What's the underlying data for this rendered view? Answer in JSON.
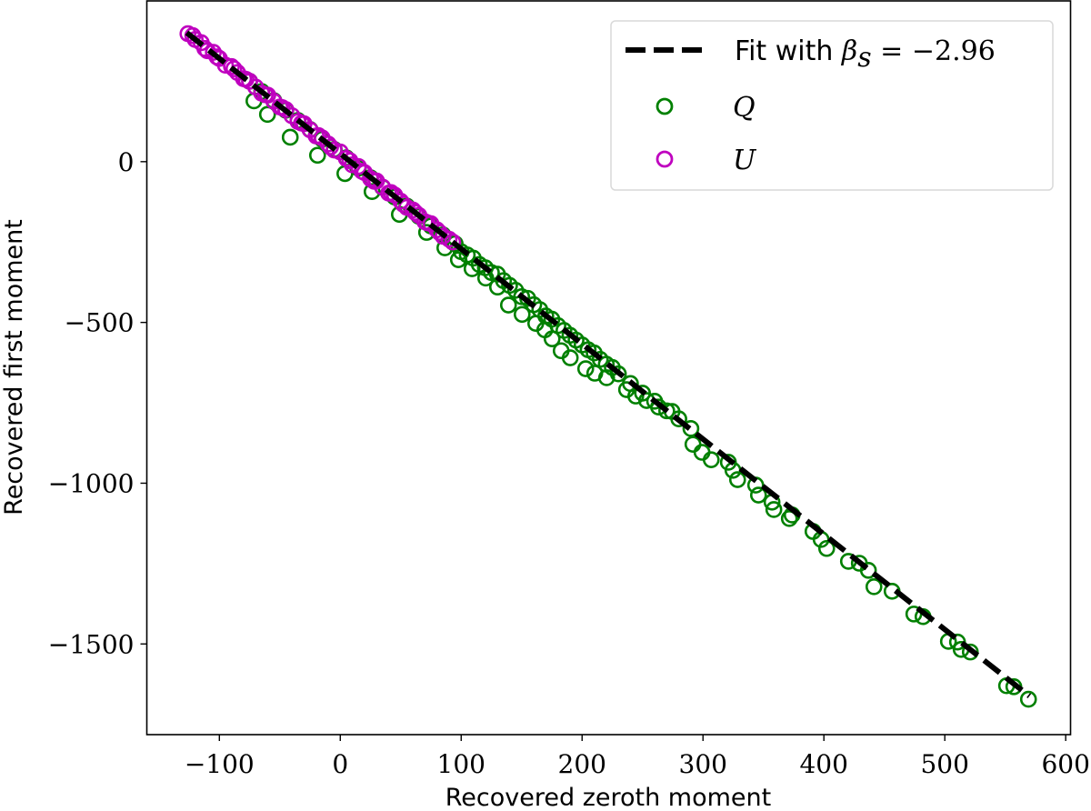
{
  "chart_data": {
    "type": "scatter",
    "xlabel": "Recovered zeroth moment",
    "ylabel": "Recovered first moment",
    "xlim": [
      -160,
      604
    ],
    "ylim": [
      -1782,
      500
    ],
    "xticks": [
      -100,
      0,
      100,
      200,
      300,
      400,
      500,
      600
    ],
    "xtick_labels": [
      "−100",
      "0",
      "100",
      "200",
      "300",
      "400",
      "500",
      "600"
    ],
    "yticks": [
      0,
      -500,
      -1000,
      -1500
    ],
    "ytick_labels": [
      "0",
      "−500",
      "−1000",
      "−1500"
    ],
    "grid": false,
    "legend_position": "top-right",
    "fit": {
      "label_prefix": "Fit with ",
      "label_symbol": "β",
      "label_subscript": "s",
      "label_value": " = −2.96",
      "slope": -2.96,
      "intercept": 25,
      "x_range": [
        -127,
        570
      ],
      "color": "#000000",
      "style": "dashed"
    },
    "series": [
      {
        "name": "Q",
        "color": "#008000",
        "marker": "open-circle",
        "points": [
          [
            -75,
            250
          ],
          [
            -71.4,
            189
          ],
          [
            -65,
            218
          ],
          [
            -60.2,
            147
          ],
          [
            -55,
            190
          ],
          [
            -45,
            160
          ],
          [
            -41.4,
            76
          ],
          [
            -35,
            128
          ],
          [
            -25,
            100
          ],
          [
            -18.8,
            20
          ],
          [
            -15,
            70
          ],
          [
            -5,
            38
          ],
          [
            3.8,
            -37
          ],
          [
            5,
            12
          ],
          [
            15,
            -20
          ],
          [
            25,
            -50
          ],
          [
            26.3,
            -93
          ],
          [
            35,
            -80
          ],
          [
            45,
            -110
          ],
          [
            48.9,
            -164
          ],
          [
            55,
            -138
          ],
          [
            65,
            -170
          ],
          [
            71.4,
            -220
          ],
          [
            75,
            -200
          ],
          [
            85,
            -228
          ],
          [
            86.5,
            -268
          ],
          [
            95,
            -255
          ],
          [
            97.7,
            -305
          ],
          [
            100,
            -280
          ],
          [
            105,
            -290
          ],
          [
            109,
            -333
          ],
          [
            110,
            -300
          ],
          [
            115,
            -320
          ],
          [
            120,
            -330
          ],
          [
            120.3,
            -362
          ],
          [
            125,
            -345
          ],
          [
            130,
            -350
          ],
          [
            130.1,
            -390
          ],
          [
            135,
            -370
          ],
          [
            139.1,
            -446
          ],
          [
            140,
            -385
          ],
          [
            145,
            -400
          ],
          [
            150,
            -420
          ],
          [
            150.4,
            -475
          ],
          [
            155,
            -425
          ],
          [
            160,
            -445
          ],
          [
            161.7,
            -503
          ],
          [
            165,
            -460
          ],
          [
            169.2,
            -523
          ],
          [
            170,
            -480
          ],
          [
            175,
            -490
          ],
          [
            175.2,
            -551
          ],
          [
            180,
            -510
          ],
          [
            182.7,
            -588
          ],
          [
            185,
            -525
          ],
          [
            190,
            -540
          ],
          [
            190.2,
            -610
          ],
          [
            195,
            -555
          ],
          [
            200,
            -570
          ],
          [
            203,
            -644
          ],
          [
            205,
            -585
          ],
          [
            210,
            -595
          ],
          [
            210.5,
            -658
          ],
          [
            215,
            -615
          ],
          [
            220,
            -630
          ],
          [
            220.3,
            -672
          ],
          [
            225,
            -640
          ],
          [
            230,
            -660
          ],
          [
            236.8,
            -709
          ],
          [
            240,
            -690
          ],
          [
            244.4,
            -729
          ],
          [
            250,
            -720
          ],
          [
            253.4,
            -743
          ],
          [
            260,
            -745
          ],
          [
            263.2,
            -763
          ],
          [
            270,
            -775
          ],
          [
            274.4,
            -777
          ],
          [
            280,
            -800
          ],
          [
            290,
            -830
          ],
          [
            291.7,
            -879
          ],
          [
            299.2,
            -904
          ],
          [
            306.8,
            -927
          ],
          [
            321,
            -935
          ],
          [
            324.8,
            -960
          ],
          [
            328.6,
            -989
          ],
          [
            343.6,
            -1006
          ],
          [
            345.9,
            -1037
          ],
          [
            357.1,
            -1059
          ],
          [
            358.6,
            -1082
          ],
          [
            371.4,
            -1110
          ],
          [
            373.7,
            -1099
          ],
          [
            391,
            -1150
          ],
          [
            397.7,
            -1175
          ],
          [
            402.3,
            -1203
          ],
          [
            420.3,
            -1243
          ],
          [
            429.3,
            -1249
          ],
          [
            436.8,
            -1271
          ],
          [
            441.4,
            -1322
          ],
          [
            456.4,
            -1336
          ],
          [
            474.4,
            -1407
          ],
          [
            482,
            -1415
          ],
          [
            503,
            -1492
          ],
          [
            510.5,
            -1494
          ],
          [
            513.5,
            -1517
          ],
          [
            521.1,
            -1525
          ],
          [
            551.1,
            -1630
          ],
          [
            557.1,
            -1633
          ],
          [
            569.2,
            -1672
          ]
        ]
      },
      {
        "name": "U",
        "color": "#bf00bf",
        "marker": "open-circle",
        "points": [
          [
            -126,
            398
          ],
          [
            -122,
            392
          ],
          [
            -120,
            380
          ],
          [
            -115,
            370
          ],
          [
            -112,
            352
          ],
          [
            -110,
            345
          ],
          [
            -105,
            340
          ],
          [
            -102,
            326
          ],
          [
            -100,
            321
          ],
          [
            -95,
            300
          ],
          [
            -90,
            296
          ],
          [
            -88,
            289
          ],
          [
            -85,
            277
          ],
          [
            -80,
            258
          ],
          [
            -78,
            256
          ],
          [
            -75,
            250
          ],
          [
            -70,
            232
          ],
          [
            -65,
            213
          ],
          [
            -62,
            208
          ],
          [
            -60,
            207
          ],
          [
            -55,
            188
          ],
          [
            -50,
            170
          ],
          [
            -48,
            168
          ],
          [
            -45,
            162
          ],
          [
            -40,
            143
          ],
          [
            -35,
            125
          ],
          [
            -32,
            120
          ],
          [
            -30,
            118
          ],
          [
            -25,
            99
          ],
          [
            -20,
            80
          ],
          [
            -18,
            81
          ],
          [
            -15,
            74
          ],
          [
            -10,
            55
          ],
          [
            -8,
            46
          ],
          [
            -5,
            36
          ],
          [
            0,
            30
          ],
          [
            5,
            10
          ],
          [
            8,
            3
          ],
          [
            10,
            -10
          ],
          [
            15,
            -15
          ],
          [
            18,
            -30
          ],
          [
            20,
            -34
          ],
          [
            25,
            -53
          ],
          [
            28,
            -61
          ],
          [
            30,
            -60
          ],
          [
            35,
            -79
          ],
          [
            40,
            -98
          ],
          [
            42,
            -96
          ],
          [
            45,
            -104
          ],
          [
            50,
            -123
          ],
          [
            52,
            -132
          ],
          [
            55,
            -142
          ],
          [
            60,
            -150
          ],
          [
            62,
            -158
          ],
          [
            65,
            -167
          ],
          [
            70,
            -187
          ],
          [
            72,
            -190
          ],
          [
            75,
            -193
          ],
          [
            80,
            -212
          ],
          [
            82,
            -220
          ],
          [
            85,
            -232
          ],
          [
            90,
            -241
          ],
          [
            93,
            -250
          ]
        ]
      }
    ]
  }
}
